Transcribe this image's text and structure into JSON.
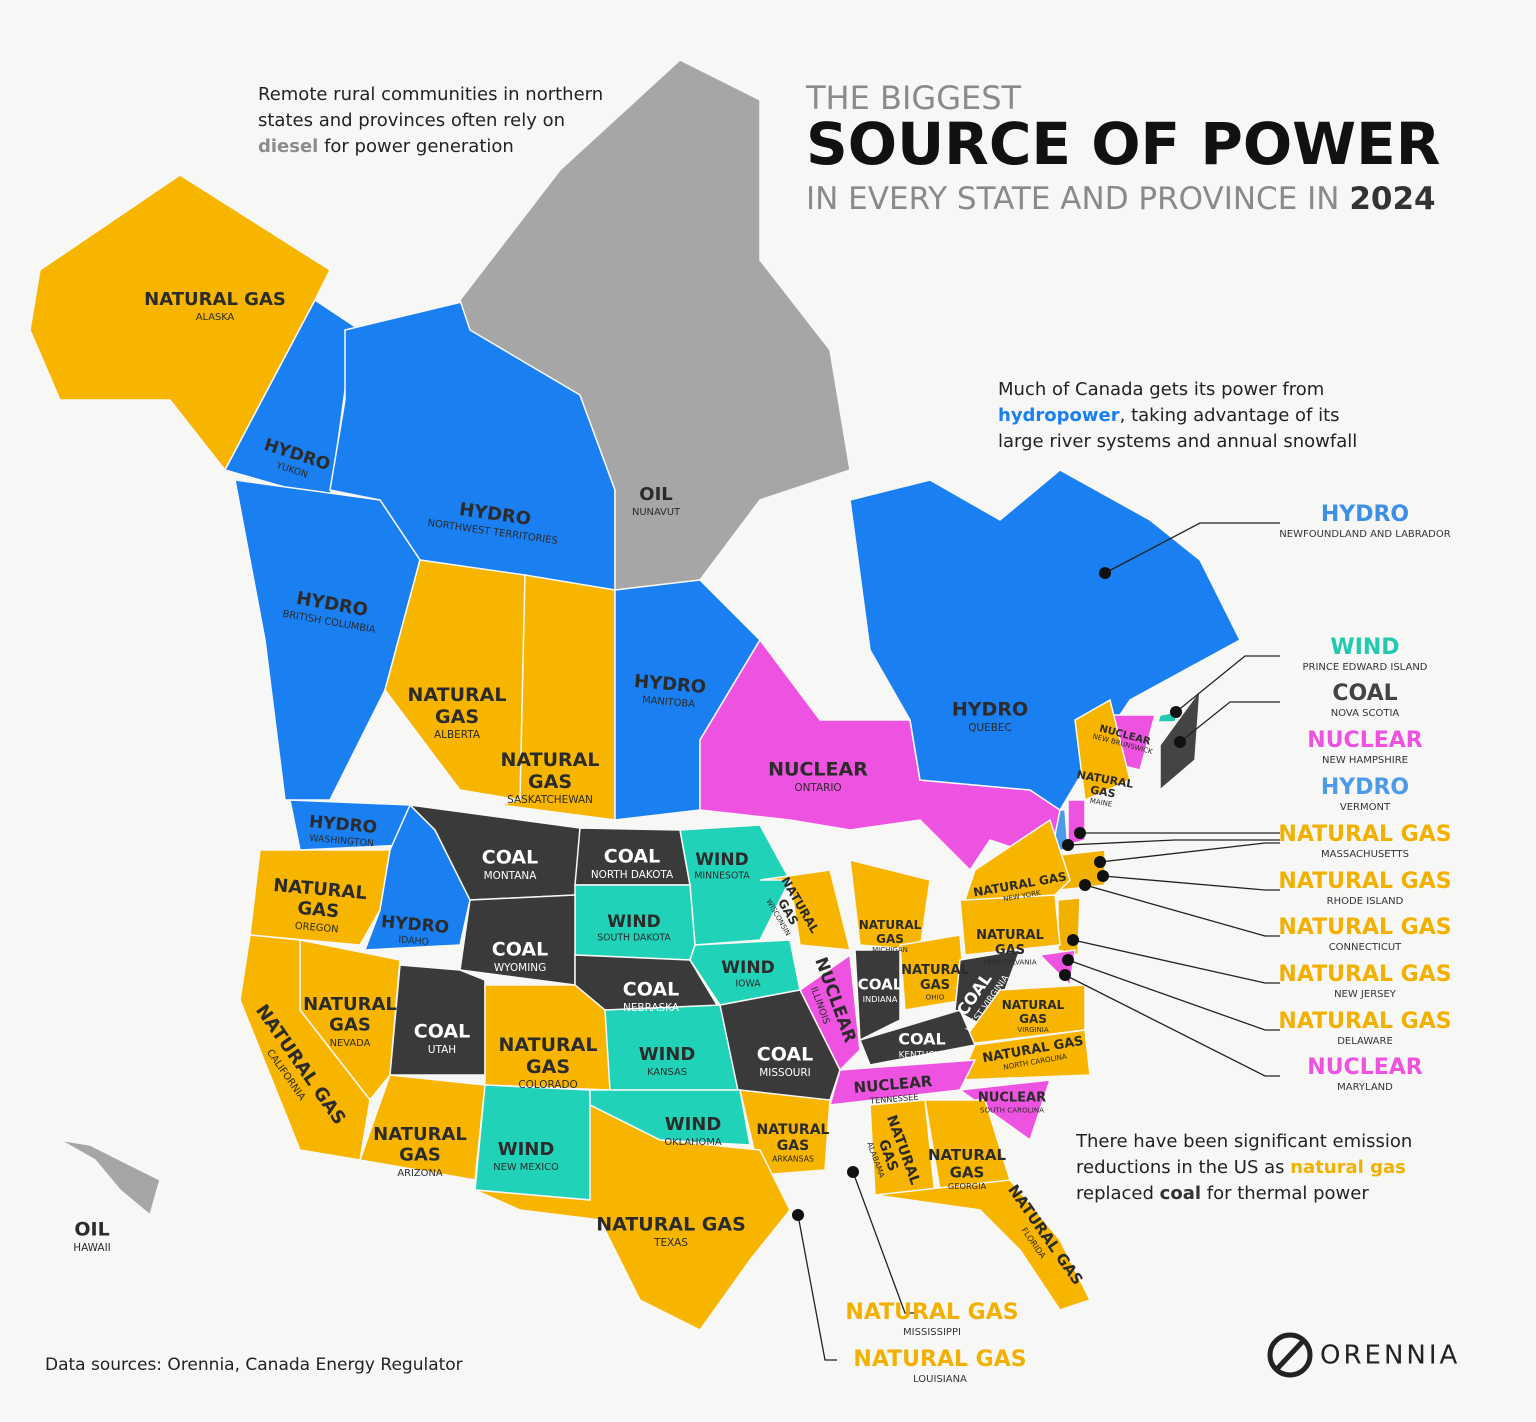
{
  "header": {
    "line1": "THE BIGGEST",
    "line2": "SOURCE OF POWER",
    "line3": "IN EVERY STATE AND PROVINCE IN",
    "year": "2024"
  },
  "annotations": [
    {
      "lines": [
        [
          {
            "text": "Remote rural communities in northern"
          }
        ],
        [
          {
            "text": "states and provinces often rely on"
          }
        ],
        [
          {
            "text": "diesel",
            "color": "#8c8c8c"
          },
          {
            "text": " for power generation"
          }
        ]
      ]
    },
    {
      "lines": [
        [
          {
            "text": "Much of Canada gets its power from"
          }
        ],
        [
          {
            "text": "hydropower",
            "color": "#1a7ff0"
          },
          {
            "text": ", taking advantage of its"
          }
        ],
        [
          {
            "text": "large river systems and annual snowfall"
          }
        ]
      ]
    },
    {
      "lines": [
        [
          {
            "text": "There have been significant emission"
          }
        ],
        [
          {
            "text": "reductions in the US as "
          },
          {
            "text": "natural gas",
            "color": "#f2b000"
          }
        ],
        [
          {
            "text": "replaced "
          },
          {
            "text": "coal",
            "color": "#333333"
          },
          {
            "text": " for thermal power"
          }
        ]
      ]
    }
  ],
  "regions": [
    {
      "source": "NATURAL GAS",
      "name": "ALASKA",
      "color": "#f7b500"
    },
    {
      "source": "HYDRO",
      "name": "YUKON",
      "color": "#1a7ff0"
    },
    {
      "source": "HYDRO",
      "name": "NORTHWEST TERRITORIES",
      "color": "#1a7ff0"
    },
    {
      "source": "OIL",
      "name": "NUNAVUT",
      "color": "#a6a6a6"
    },
    {
      "source": "HYDRO",
      "name": "BRITISH COLUMBIA",
      "color": "#1a7ff0"
    },
    {
      "source": "NATURAL GAS",
      "name": "ALBERTA",
      "color": "#f7b500"
    },
    {
      "source": "NATURAL GAS",
      "name": "SASKATCHEWAN",
      "color": "#f7b500"
    },
    {
      "source": "HYDRO",
      "name": "MANITOBA",
      "color": "#1a7ff0"
    },
    {
      "source": "NUCLEAR",
      "name": "ONTARIO",
      "color": "#ee52e0"
    },
    {
      "source": "HYDRO",
      "name": "QUEBEC",
      "color": "#1a7ff0"
    },
    {
      "source": "NUCLEAR",
      "name": "NEW BRUNSWICK",
      "color": "#ee52e0"
    },
    {
      "source": "HYDRO",
      "name": "WASHINGTON",
      "color": "#1a7ff0"
    },
    {
      "source": "NATURAL GAS",
      "name": "OREGON",
      "color": "#f7b500"
    },
    {
      "source": "HYDRO",
      "name": "IDAHO",
      "color": "#1a7ff0"
    },
    {
      "source": "COAL",
      "name": "MONTANA",
      "color": "#3a3a3a"
    },
    {
      "source": "COAL",
      "name": "NORTH DAKOTA",
      "color": "#3a3a3a"
    },
    {
      "source": "WIND",
      "name": "MINNESOTA",
      "color": "#20d3b8"
    },
    {
      "source": "WIND",
      "name": "SOUTH DAKOTA",
      "color": "#20d3b8"
    },
    {
      "source": "COAL",
      "name": "WYOMING",
      "color": "#3a3a3a"
    },
    {
      "source": "NATURAL GAS",
      "name": "NEVADA",
      "color": "#f7b500"
    },
    {
      "source": "NATURAL GAS",
      "name": "CALIFORNIA",
      "color": "#f7b500"
    },
    {
      "source": "COAL",
      "name": "UTAH",
      "color": "#3a3a3a"
    },
    {
      "source": "NATURAL GAS",
      "name": "COLORADO",
      "color": "#f7b500"
    },
    {
      "source": "COAL",
      "name": "NEBRASKA",
      "color": "#3a3a3a"
    },
    {
      "source": "WIND",
      "name": "IOWA",
      "color": "#20d3b8"
    },
    {
      "source": "NATURAL GAS",
      "name": "WISCONSIN",
      "color": "#f7b500"
    },
    {
      "source": "NATURAL GAS",
      "name": "MICHIGAN",
      "color": "#f7b500"
    },
    {
      "source": "NUCLEAR",
      "name": "ILLINOIS",
      "color": "#ee52e0"
    },
    {
      "source": "COAL",
      "name": "INDIANA",
      "color": "#3a3a3a"
    },
    {
      "source": "NATURAL GAS",
      "name": "OHIO",
      "color": "#f7b500"
    },
    {
      "source": "NATURAL GAS",
      "name": "PENNSYLVANIA",
      "color": "#f7b500"
    },
    {
      "source": "NATURAL GAS",
      "name": "NEW YORK",
      "color": "#f7b500"
    },
    {
      "source": "NATURAL GAS",
      "name": "MAINE",
      "color": "#f7b500"
    },
    {
      "source": "COAL",
      "name": "WEST VIRGINIA",
      "color": "#3a3a3a"
    },
    {
      "source": "NATURAL GAS",
      "name": "VIRGINIA",
      "color": "#f7b500"
    },
    {
      "source": "COAL",
      "name": "KENTUCKY",
      "color": "#3a3a3a"
    },
    {
      "source": "WIND",
      "name": "KANSAS",
      "color": "#20d3b8"
    },
    {
      "source": "COAL",
      "name": "MISSOURI",
      "color": "#3a3a3a"
    },
    {
      "source": "NATURAL GAS",
      "name": "NORTH CAROLINA",
      "color": "#f7b500"
    },
    {
      "source": "NUCLEAR",
      "name": "TENNESSEE",
      "color": "#ee52e0"
    },
    {
      "source": "NUCLEAR",
      "name": "SOUTH CAROLINA",
      "color": "#ee52e0"
    },
    {
      "source": "NATURAL GAS",
      "name": "ARIZONA",
      "color": "#f7b500"
    },
    {
      "source": "WIND",
      "name": "NEW MEXICO",
      "color": "#20d3b8"
    },
    {
      "source": "WIND",
      "name": "OKLAHOMA",
      "color": "#20d3b8"
    },
    {
      "source": "NATURAL GAS",
      "name": "ARKANSAS",
      "color": "#f7b500"
    },
    {
      "source": "NATURAL GAS",
      "name": "ALABAMA",
      "color": "#f7b500"
    },
    {
      "source": "NATURAL GAS",
      "name": "GEORGIA",
      "color": "#f7b500"
    },
    {
      "source": "NATURAL GAS",
      "name": "TEXAS",
      "color": "#f7b500"
    },
    {
      "source": "NATURAL GAS",
      "name": "FLORIDA",
      "color": "#f7b500"
    },
    {
      "source": "OIL",
      "name": "HAWAII",
      "color": "#a6a6a6"
    }
  ],
  "callouts": [
    {
      "source": "HYDRO",
      "name": "NEWFOUNDLAND AND LABRADOR",
      "color": "#3d8fe6"
    },
    {
      "source": "WIND",
      "name": "PRINCE EDWARD ISLAND",
      "color": "#20c9b0"
    },
    {
      "source": "COAL",
      "name": "NOVA SCOTIA",
      "color": "#444444"
    },
    {
      "source": "NUCLEAR",
      "name": "NEW HAMPSHIRE",
      "color": "#ee52e0"
    },
    {
      "source": "HYDRO",
      "name": "VERMONT",
      "color": "#4d9be8"
    },
    {
      "source": "NATURAL GAS",
      "name": "MASSACHUSETTS",
      "color": "#f2b000"
    },
    {
      "source": "NATURAL GAS",
      "name": "RHODE ISLAND",
      "color": "#f2b000"
    },
    {
      "source": "NATURAL GAS",
      "name": "CONNECTICUT",
      "color": "#f2b000"
    },
    {
      "source": "NATURAL GAS",
      "name": "NEW JERSEY",
      "color": "#f2b000"
    },
    {
      "source": "NATURAL GAS",
      "name": "DELAWARE",
      "color": "#f2b000"
    },
    {
      "source": "NUCLEAR",
      "name": "MARYLAND",
      "color": "#ee52e0"
    },
    {
      "source": "NATURAL GAS",
      "name": "MISSISSIPPI",
      "color": "#f2b000"
    },
    {
      "source": "NATURAL GAS",
      "name": "LOUISIANA",
      "color": "#f2b000"
    }
  ],
  "footer": {
    "sources": "Data sources: Orennia, Canada Energy Regulator",
    "logo": "ORENNIA"
  }
}
